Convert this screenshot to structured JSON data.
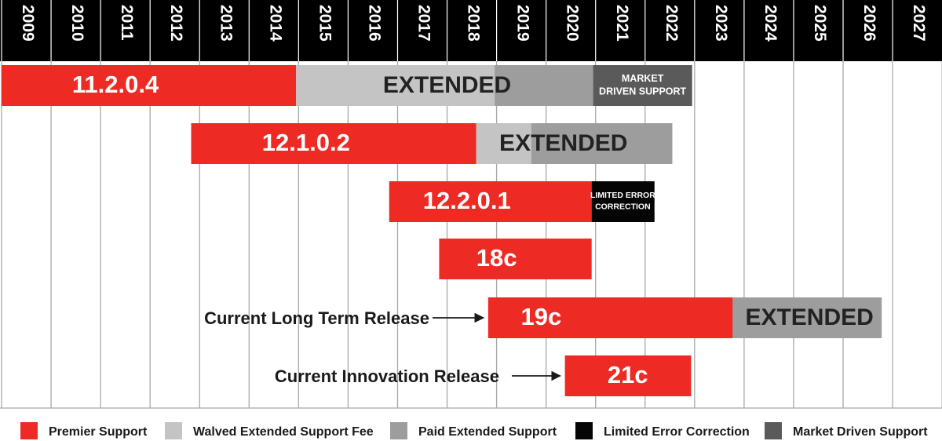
{
  "chart_data": {
    "type": "gantt",
    "title": "",
    "years": [
      "2009",
      "2010",
      "2011",
      "2012",
      "2013",
      "2014",
      "2015",
      "2016",
      "2017",
      "2018",
      "2019",
      "2020",
      "2021",
      "2022",
      "2023",
      "2024",
      "2025",
      "2026",
      "2027"
    ],
    "colors": {
      "premier": "#ee2a24",
      "waived": "#c4c4c4",
      "paid": "#9d9d9d",
      "limited": "#050505",
      "market": "#5a5a5a"
    },
    "releases": [
      {
        "name": "11.2.0.4",
        "segments": [
          {
            "type": "premier",
            "start": 2009.0,
            "end": 2014.95
          },
          {
            "type": "waived",
            "start": 2014.95,
            "end": 2018.96
          },
          {
            "type": "paid",
            "start": 2018.96,
            "end": 2020.95
          },
          {
            "type": "market",
            "start": 2020.95,
            "end": 2022.95
          }
        ],
        "labels": [
          {
            "text": "11.2.0.4",
            "style": "big",
            "at": 2011.3
          },
          {
            "text": "EXTENDED",
            "style": "ext",
            "at": 2018.0
          },
          {
            "text": "MARKET",
            "style": "small",
            "at": 2021.95,
            "line": 0
          },
          {
            "text": "DRIVEN SUPPORT",
            "style": "small",
            "at": 2021.95,
            "line": 1
          }
        ]
      },
      {
        "name": "12.1.0.2",
        "segments": [
          {
            "type": "premier",
            "start": 2012.83,
            "end": 2018.59
          },
          {
            "type": "waived",
            "start": 2018.59,
            "end": 2019.7
          },
          {
            "type": "paid",
            "start": 2019.7,
            "end": 2022.55
          }
        ],
        "labels": [
          {
            "text": "12.1.0.2",
            "style": "big",
            "at": 2015.15
          },
          {
            "text": "EXTENDED",
            "style": "ext",
            "at": 2020.35
          }
        ]
      },
      {
        "name": "12.2.0.1",
        "segments": [
          {
            "type": "premier",
            "start": 2016.83,
            "end": 2020.92
          },
          {
            "type": "limited",
            "start": 2020.92,
            "end": 2022.19
          }
        ],
        "labels": [
          {
            "text": "12.2.0.1",
            "style": "big",
            "at": 2018.4
          },
          {
            "text": "LIMITED ERROR",
            "style": "small",
            "at": 2021.55,
            "line": 0
          },
          {
            "text": "CORRECTION",
            "style": "small",
            "at": 2021.55,
            "line": 1
          }
        ]
      },
      {
        "name": "18c",
        "segments": [
          {
            "type": "premier",
            "start": 2017.84,
            "end": 2020.92
          }
        ],
        "labels": [
          {
            "text": "18c",
            "style": "big",
            "at": 2019.0
          }
        ]
      },
      {
        "name": "19c",
        "segments": [
          {
            "type": "premier",
            "start": 2018.83,
            "end": 2023.77
          },
          {
            "type": "paid",
            "start": 2023.77,
            "end": 2026.78
          }
        ],
        "labels": [
          {
            "text": "19c",
            "style": "big",
            "at": 2019.9
          },
          {
            "text": "EXTENDED",
            "style": "ext",
            "at": 2025.32
          }
        ],
        "annotation": "Current Long Term Release"
      },
      {
        "name": "21c",
        "segments": [
          {
            "type": "premier",
            "start": 2020.38,
            "end": 2022.93
          }
        ],
        "labels": [
          {
            "text": "21c",
            "style": "big",
            "at": 2021.65
          }
        ],
        "annotation": "Current Innovation Release"
      }
    ],
    "legend": [
      {
        "key": "premier",
        "label": "Premier Support"
      },
      {
        "key": "waived",
        "label": "Walved Extended Support Fee"
      },
      {
        "key": "paid",
        "label": "Paid Extended Support"
      },
      {
        "key": "limited",
        "label": "Limited Error Correction"
      },
      {
        "key": "market",
        "label": "Market Driven Support"
      }
    ]
  }
}
